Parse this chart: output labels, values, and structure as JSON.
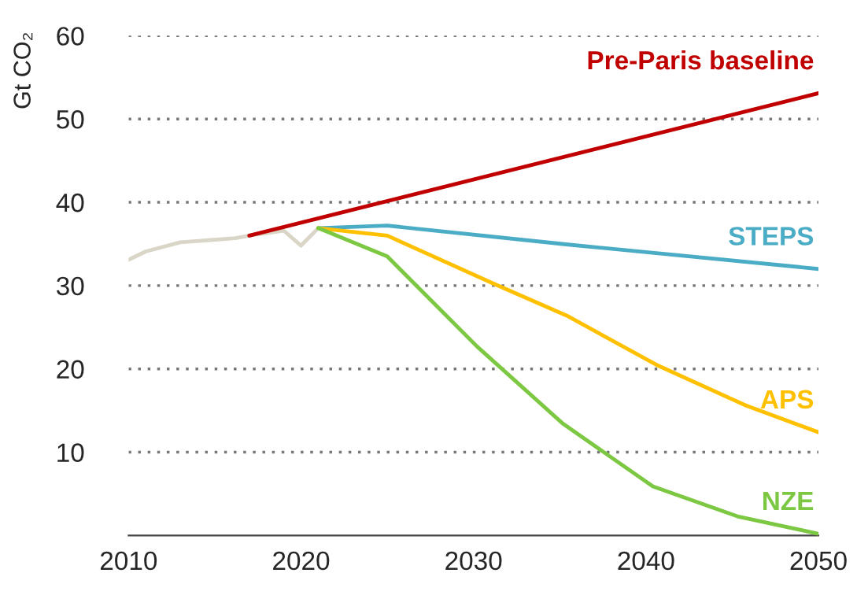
{
  "chart_data": {
    "type": "line",
    "ylabel": "Gt CO₂",
    "xlim": [
      2010,
      2050
    ],
    "xticks": [
      2010,
      2020,
      2030,
      2040,
      2050
    ],
    "ylim": [
      0,
      60
    ],
    "yticks": [
      10,
      20,
      30,
      40,
      50,
      60
    ],
    "grid": "y",
    "legend": false,
    "marker": "none",
    "line_style": "solid",
    "series": [
      {
        "color": "#d9d5c7",
        "x": [
          2010,
          2011,
          2013,
          2014.3,
          2016.2,
          2017,
          2019,
          2020,
          2021
        ],
        "values": [
          33.1,
          34.1,
          35.2,
          35.4,
          35.7,
          36.0,
          36.6,
          34.8,
          36.9
        ]
      },
      {
        "name": "Pre-Paris baseline",
        "color": "#c00000",
        "x": [
          2017,
          2050
        ],
        "values": [
          36.0,
          53.1
        ]
      },
      {
        "name": "STEPS",
        "color": "#4bacc6",
        "x": [
          2021,
          2025,
          2035.6,
          2040.6,
          2050
        ],
        "values": [
          36.9,
          37.2,
          34.9,
          33.9,
          32.0
        ]
      },
      {
        "name": "APS",
        "color": "#ffc000",
        "x": [
          2021,
          2025,
          2031.2,
          2035.4,
          2040.6,
          2045.8,
          2050
        ],
        "values": [
          36.9,
          36.0,
          30.2,
          26.4,
          20.5,
          15.6,
          12.4
        ]
      },
      {
        "name": "NZE",
        "color": "#7dc843",
        "x": [
          2021,
          2025,
          2030.2,
          2035.2,
          2040.4,
          2045.3,
          2050
        ],
        "values": [
          36.9,
          33.5,
          22.7,
          13.4,
          5.9,
          2.3,
          0.2
        ]
      }
    ]
  }
}
